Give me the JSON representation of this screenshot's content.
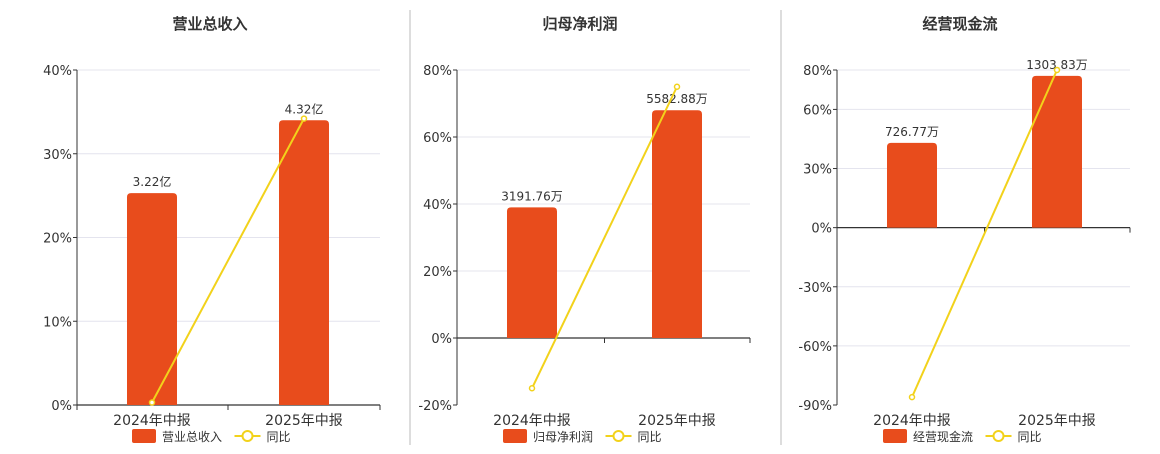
{
  "colors": {
    "bar": "#E84C1C",
    "line": "#F2D21B",
    "axis": "#333333",
    "grid": "#E4E4EE",
    "divider": "#BBBBBB",
    "text": "#333333"
  },
  "chart_data": [
    {
      "type": "bar",
      "title": "营业总收入",
      "categories": [
        "2024年中报",
        "2025年中报"
      ],
      "bar_series": {
        "name": "营业总收入",
        "values": [
          25.3,
          34.0
        ],
        "labels": [
          "3.22亿",
          "4.32亿"
        ]
      },
      "line_series": {
        "name": "同比",
        "values": [
          0.3,
          34.2
        ]
      },
      "ylim": [
        0,
        40
      ],
      "yticks": [
        0,
        10,
        20,
        30,
        40
      ],
      "ytick_labels": [
        "0%",
        "10%",
        "20%",
        "30%",
        "40%"
      ],
      "legend": [
        "营业总收入",
        "同比"
      ],
      "legend_position": "bottom",
      "grid": true
    },
    {
      "type": "bar",
      "title": "归母净利润",
      "categories": [
        "2024年中报",
        "2025年中报"
      ],
      "bar_series": {
        "name": "归母净利润",
        "values": [
          39.0,
          68.0
        ],
        "labels": [
          "3191.76万",
          "5582.88万"
        ]
      },
      "line_series": {
        "name": "同比",
        "values": [
          -15.0,
          75.0
        ]
      },
      "ylim": [
        -20,
        80
      ],
      "yticks": [
        -20,
        0,
        20,
        40,
        60,
        80
      ],
      "ytick_labels": [
        "-20%",
        "0%",
        "20%",
        "40%",
        "60%",
        "80%"
      ],
      "legend": [
        "归母净利润",
        "同比"
      ],
      "legend_position": "bottom",
      "grid": true
    },
    {
      "type": "bar",
      "title": "经营现金流",
      "categories": [
        "2024年中报",
        "2025年中报"
      ],
      "bar_series": {
        "name": "经营现金流",
        "values": [
          43.0,
          77.0
        ],
        "labels": [
          "726.77万",
          "1303.83万"
        ]
      },
      "line_series": {
        "name": "同比",
        "values": [
          -86.0,
          80.0
        ]
      },
      "ylim": [
        -90,
        80
      ],
      "yticks": [
        -90,
        -60,
        -30,
        0,
        30,
        60,
        80
      ],
      "ytick_labels": [
        "-90%",
        "-60%",
        "-30%",
        "0%",
        "30%",
        "60%",
        "80%"
      ],
      "legend": [
        "经营现金流",
        "同比"
      ],
      "legend_position": "bottom",
      "grid": true
    }
  ]
}
